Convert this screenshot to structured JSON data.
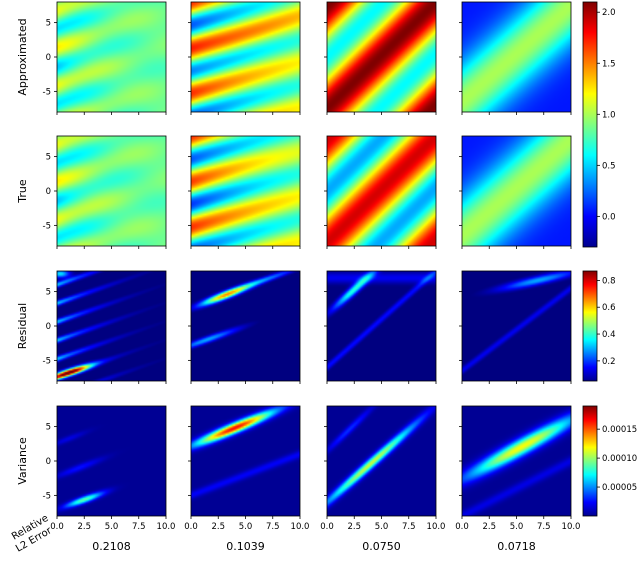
{
  "chart_data": {
    "type": "heatmap",
    "rows": [
      "Approximated",
      "True",
      "Residual",
      "Variance"
    ],
    "x_ticks": [
      "0.0",
      "2.5",
      "5.0",
      "7.5",
      "10.0"
    ],
    "y_ticks": [
      "5",
      "0",
      "-5"
    ],
    "xlim": [
      0,
      10
    ],
    "ylim": [
      -8,
      8
    ],
    "colormap": "jet",
    "colorbars": [
      {
        "row": "Approximated / True",
        "range": [
          -0.3,
          2.1
        ],
        "ticks": [
          "2.0",
          "1.5",
          "1.0",
          "0.5",
          "0.0"
        ]
      },
      {
        "row": "Residual",
        "range": [
          0.05,
          0.87
        ],
        "ticks": [
          "0.8",
          "0.6",
          "0.4",
          "0.2"
        ]
      },
      {
        "row": "Variance",
        "range": [
          0.0,
          0.00019
        ],
        "ticks": [
          "0.00015",
          "0.00010",
          "0.00005"
        ]
      }
    ],
    "error_label_line1": "Relative",
    "error_label_line2": "L2 Error",
    "relative_l2_errors": [
      "0.2108",
      "0.1039",
      "0.0750",
      "0.0718"
    ]
  }
}
